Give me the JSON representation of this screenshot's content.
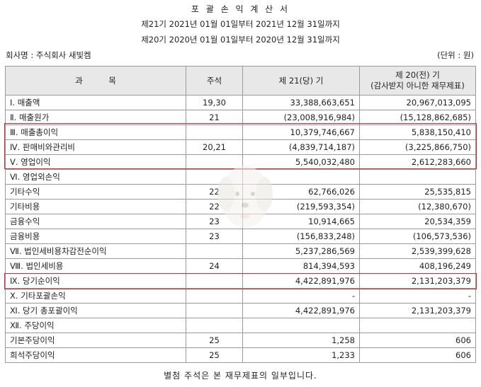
{
  "header": {
    "title": "포 괄 손 익 계 산 서",
    "period_current": "제21기 2021년 01월 01일부터 2021년 12월 31일까지",
    "period_prior": "제20기 2020년 01월 01일부터 2020년 12월 31일까지",
    "company": "회사명 : 주식회사 새빛켐",
    "unit": "(단위 : 원)"
  },
  "table": {
    "col_account": "과          목",
    "col_note": "주석",
    "col_current": "제 21(당) 기",
    "col_prior_line1": "제 20(전) 기",
    "col_prior_line2": "(감사받지 아니한 재무제표)",
    "rows": [
      {
        "account": "Ⅰ. 매출액",
        "note": "19,30",
        "current": "33,388,663,651",
        "prior": "20,967,013,095"
      },
      {
        "account": "Ⅱ. 매출원가",
        "note": "21",
        "current": "(23,008,916,984)",
        "prior": "(15,128,862,685)"
      },
      {
        "account": "Ⅲ. 매출총이익",
        "note": "",
        "current": "10,379,746,667",
        "prior": "5,838,150,410"
      },
      {
        "account": "Ⅳ. 판매비와관리비",
        "note": "20,21",
        "current": "(4,839,714,187)",
        "prior": "(3,225,866,750)"
      },
      {
        "account": "Ⅴ. 영업이익",
        "note": "",
        "current": "5,540,032,480",
        "prior": "2,612,283,660"
      },
      {
        "account": "Ⅵ. 영업외손익",
        "note": "",
        "current": "",
        "prior": ""
      },
      {
        "account": "기타수익",
        "note": "22",
        "current": "62,766,026",
        "prior": "25,535,815"
      },
      {
        "account": "기타비용",
        "note": "22",
        "current": "(219,593,354)",
        "prior": "(12,380,670)"
      },
      {
        "account": "금융수익",
        "note": "23",
        "current": "10,914,665",
        "prior": "20,534,359"
      },
      {
        "account": "금융비용",
        "note": "23",
        "current": "(156,833,248)",
        "prior": "(106,573,536)"
      },
      {
        "account": "Ⅶ. 법인세비용차감전순이익",
        "note": "",
        "current": "5,237,286,569",
        "prior": "2,539,399,628"
      },
      {
        "account": "Ⅷ. 법인세비용",
        "note": "24",
        "current": "814,394,593",
        "prior": "408,196,249"
      },
      {
        "account": "Ⅸ. 당기순이익",
        "note": "",
        "current": "4,422,891,976",
        "prior": "2,131,203,379"
      },
      {
        "account": "Ⅹ. 기타포괄손익",
        "note": "",
        "current": "-",
        "prior": "-"
      },
      {
        "account": "Ⅺ. 당기 총포괄이익",
        "note": "",
        "current": "4,422,891,976",
        "prior": "2,131,203,379"
      },
      {
        "account": "Ⅻ. 주당이익",
        "note": "",
        "current": "",
        "prior": ""
      },
      {
        "account": "기본주당이익",
        "note": "25",
        "current": "1,258",
        "prior": "606"
      },
      {
        "account": "희석주당이익",
        "note": "25",
        "current": "1,233",
        "prior": "606"
      }
    ]
  },
  "colors": {
    "highlight": "#d9262e",
    "header_bg": "#e8e8e8",
    "border": "#9a9a9a"
  },
  "watermark_icon": "puppy-face-watermark-icon",
  "footer": "별첨 주석은 본 재무제표의 일부입니다."
}
